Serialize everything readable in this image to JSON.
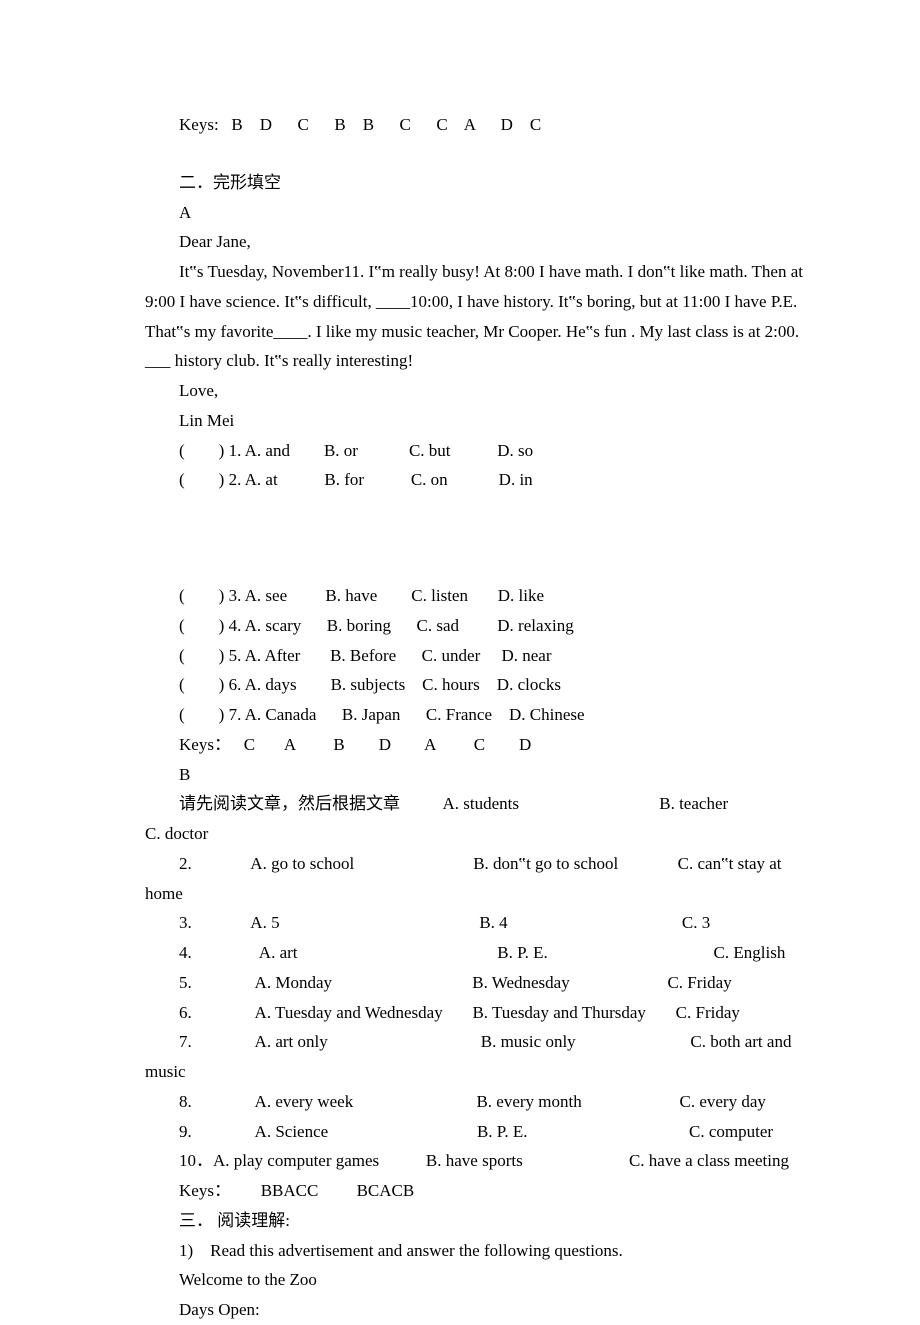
{
  "keys_line": "Keys:   B    D      C      B    B      C      C    A      D    C",
  "section2_title": "二．完形填空",
  "section2_a": "A",
  "greeting": "Dear Jane,",
  "passage1": "It‟s Tuesday, November11. I‟m really busy! At 8:00 I have math. I don‟t like math. Then at 9:00 I have science. It‟s difficult, ____10:00, I have history. It‟s boring, but at 11:00 I have P.E. That‟s my favorite____. I like my music teacher, Mr Cooper. He‟s fun . My last class is at 2:00. ___ history club. It‟s really interesting!",
  "love": "Love,",
  "signoff": "Lin Mei",
  "q_a1": "(        ) 1. A. and        B. or            C. but           D. so",
  "q_a2": "(        ) 2. A. at           B. for           C. on            D. in",
  "q_a3": "(        ) 3. A. see         B. have        C. listen       D. like",
  "q_a4": "(        ) 4. A. scary      B. boring      C. sad         D. relaxing",
  "q_a5": "(        ) 5. A. After       B. Before      C. under     D. near",
  "q_a6": "(        ) 6. A. days        B. subjects    C. hours    D. clocks",
  "q_a7": "(        ) 7. A. Canada      B. Japan      C. France    D. Chinese",
  "keys_a": "Keys：   C       A         B        D        A         C        D",
  "section2_b": "B",
  "b_intro": "请先阅读文章，然后根据文章          A. students                                 B. teacher                     C. doctor",
  "b_q2": "2.              A. go to school                            B. don‟t go to school              C. can‟t stay at home",
  "b_q3": "3.              A. 5                                               B. 4                                         C. 3",
  "b_q4": "4.                A. art                                               B. P. E.                                       C. English",
  "b_q5": "5.               A. Monday                                 B. Wednesday                       C. Friday",
  "b_q6": "6.               A. Tuesday and Wednesday       B. Tuesday and Thursday       C. Friday",
  "b_q7": "7.               A. art only                                    B. music only                           C. both art and music",
  "b_q8": "8.               A. every week                             B. every month                       C. every day",
  "b_q9": "9.               A. Science                                   B. P. E.                                      C. computer",
  "b_q10": "10．A. play computer games           B. have sports                         C. have a class meeting",
  "keys_b": "Keys：       BBACC         BCACB",
  "section3_title": "三． 阅读理解:",
  "section3_q1": "1)    Read this advertisement and answer the following questions.",
  "zoo_welcome": "Welcome to the Zoo",
  "zoo_days": "Days Open:",
  "styles": {
    "font_size": 17,
    "line_height": 1.75,
    "text_color": "#000000",
    "background_color": "#ffffff",
    "indent_em": 2
  }
}
